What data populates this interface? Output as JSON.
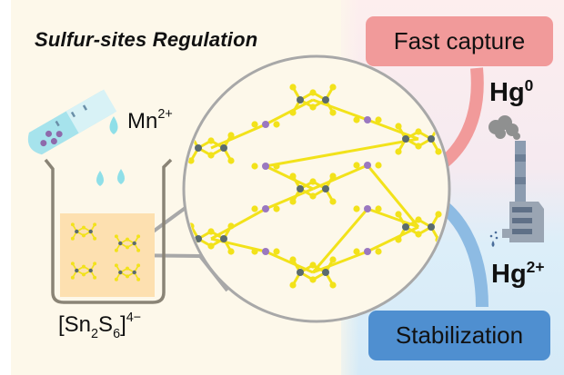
{
  "title": "Sulfur-sites  Regulation",
  "labels": {
    "fast_capture": "Fast capture",
    "stabilization": "Stabilization",
    "hg0": {
      "base": "Hg",
      "sup": "0"
    },
    "hg2": {
      "base": "Hg",
      "sup": "2+"
    },
    "mn": {
      "base": "Mn",
      "sup": "2+"
    },
    "precursor": {
      "open": "[Sn",
      "sub1": "2",
      "mid": "S",
      "sub2": "6",
      "close": "]",
      "sup": "4−"
    }
  },
  "colors": {
    "left_background": "#fdf8ea",
    "right_top_background": "#fdeeee",
    "right_bottom_background": "#d5eaf7",
    "fast_capture_box": "#f19a9a",
    "stabilization_box": "#4f8fd0",
    "sulfur_atom": "#f2e21a",
    "tin_atom": "#5b6b6e",
    "manganese_atom": "#9a78c0",
    "liquid": "#fde0b0",
    "water_drop": "#8fdfe8"
  }
}
